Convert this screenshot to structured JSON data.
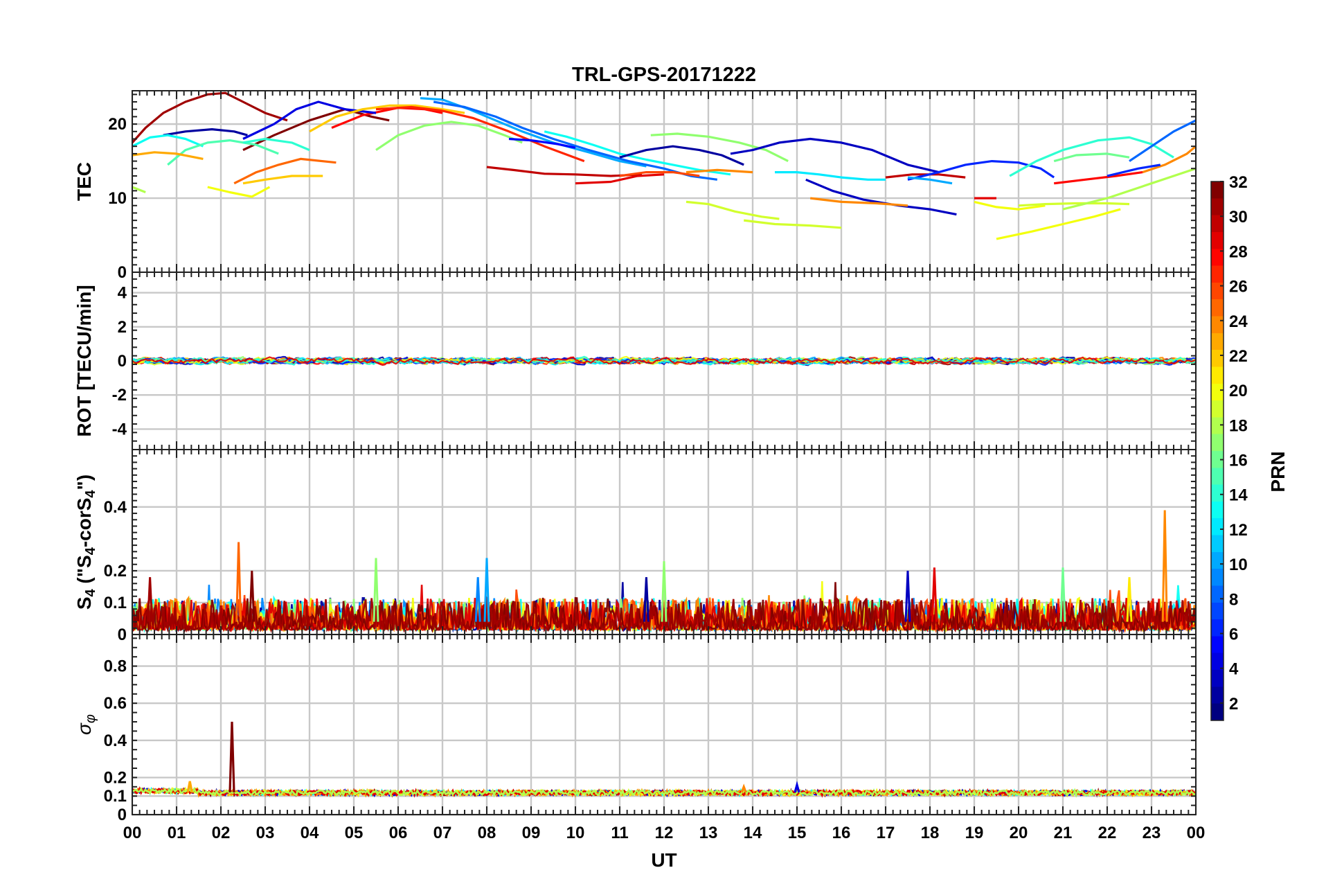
{
  "chart_data": {
    "type": "line",
    "title": "TRL-GPS-20171222",
    "xlabel": "UT",
    "x_tick_labels": [
      "00",
      "01",
      "02",
      "03",
      "04",
      "05",
      "06",
      "07",
      "08",
      "09",
      "10",
      "11",
      "12",
      "13",
      "14",
      "15",
      "16",
      "17",
      "18",
      "19",
      "20",
      "21",
      "22",
      "23",
      "00"
    ],
    "xlim": [
      0,
      24
    ],
    "grid": true,
    "panels": [
      {
        "id": "tec",
        "ylabel": "TEC",
        "ylim": [
          0,
          24.5
        ],
        "y_ticks": [
          0,
          10,
          20
        ],
        "y_tick_labels": [
          "0",
          "10",
          "20"
        ],
        "series": [
          {
            "prn": 31,
            "x": [
              0.0,
              0.3,
              0.7,
              1.2,
              1.7,
              2.1,
              2.5,
              3.0,
              3.5
            ],
            "y": [
              17.5,
              19.5,
              21.5,
              23.0,
              24.0,
              24.2,
              23.0,
              21.5,
              20.5
            ]
          },
          {
            "prn": 32,
            "x": [
              2.5,
              3.2,
              4.0,
              4.8,
              5.4,
              5.8
            ],
            "y": [
              16.5,
              18.5,
              20.5,
              22.0,
              21.0,
              20.5
            ]
          },
          {
            "prn": 28,
            "x": [
              4.5,
              5.2,
              6.0,
              6.6,
              7.0
            ],
            "y": [
              19.5,
              21.2,
              22.2,
              22.0,
              21.5
            ]
          },
          {
            "prn": 2,
            "x": [
              0.7,
              1.2,
              1.8,
              2.3,
              2.6
            ],
            "y": [
              18.5,
              19.0,
              19.3,
              19.0,
              18.5
            ]
          },
          {
            "prn": 4,
            "x": [
              2.5,
              3.2,
              3.7,
              4.2,
              4.8,
              5.5
            ],
            "y": [
              18.0,
              20.0,
              22.0,
              23.0,
              22.0,
              21.5
            ]
          },
          {
            "prn": 13,
            "x": [
              0.0,
              0.4,
              0.8,
              1.2,
              1.6
            ],
            "y": [
              17.0,
              18.2,
              18.5,
              18.0,
              17.0
            ]
          },
          {
            "prn": 15,
            "x": [
              0.8,
              1.2,
              1.7,
              2.2,
              2.8,
              3.3
            ],
            "y": [
              14.5,
              16.5,
              17.5,
              17.8,
              17.2,
              16.0
            ]
          },
          {
            "prn": 14,
            "x": [
              2.5,
              3.0,
              3.6,
              4.0
            ],
            "y": [
              17.5,
              18.0,
              17.5,
              16.5
            ]
          },
          {
            "prn": 23,
            "x": [
              0.0,
              0.5,
              1.0,
              1.6
            ],
            "y": [
              15.8,
              16.2,
              16.0,
              15.3
            ]
          },
          {
            "prn": 25,
            "x": [
              2.3,
              2.8,
              3.3,
              3.8,
              4.6
            ],
            "y": [
              12.0,
              13.5,
              14.5,
              15.3,
              14.8
            ]
          },
          {
            "prn": 22,
            "x": [
              2.5,
              3.0,
              3.6,
              4.3
            ],
            "y": [
              12.0,
              12.5,
              13.0,
              13.0
            ]
          },
          {
            "prn": 20,
            "x": [
              1.7,
              2.2,
              2.7,
              3.1
            ],
            "y": [
              11.5,
              10.8,
              10.2,
              11.5
            ]
          },
          {
            "prn": 18,
            "x": [
              0.0,
              0.3
            ],
            "y": [
              11.5,
              10.8
            ]
          },
          {
            "prn": 22,
            "x": [
              4.0,
              4.6,
              5.2,
              5.8,
              6.4,
              7.0,
              7.5
            ],
            "y": [
              19.0,
              21.0,
              22.0,
              22.5,
              22.5,
              22.0,
              21.5
            ]
          },
          {
            "prn": 10,
            "x": [
              6.5,
              7.0,
              7.6,
              8.2,
              8.8,
              9.5,
              10.3,
              11.0,
              11.6
            ],
            "y": [
              23.5,
              23.3,
              22.0,
              20.5,
              19.0,
              17.5,
              16.2,
              15.0,
              14.3
            ]
          },
          {
            "prn": 27,
            "x": [
              5.5,
              6.3,
              7.0,
              7.7,
              8.5,
              9.3,
              10.2
            ],
            "y": [
              22.0,
              22.3,
              21.8,
              20.8,
              19.0,
              17.0,
              15.0
            ]
          },
          {
            "prn": 8,
            "x": [
              6.8,
              7.5,
              8.2,
              8.8,
              9.5,
              10.3,
              11.2,
              12.0,
              12.6,
              13.2
            ],
            "y": [
              23.0,
              22.3,
              21.0,
              19.5,
              18.0,
              16.5,
              15.0,
              14.0,
              13.0,
              12.5
            ]
          },
          {
            "prn": 17,
            "x": [
              5.5,
              6.0,
              6.6,
              7.2,
              7.8,
              8.4,
              8.8
            ],
            "y": [
              16.5,
              18.5,
              19.8,
              20.3,
              19.8,
              18.5,
              17.5
            ]
          },
          {
            "prn": 5,
            "x": [
              8.5,
              9.0,
              9.6,
              10.0
            ],
            "y": [
              18.0,
              17.8,
              17.3,
              16.8
            ]
          },
          {
            "prn": 13,
            "x": [
              9.3,
              9.8,
              10.4,
              11.0,
              11.6,
              12.2,
              12.8,
              13.5
            ],
            "y": [
              19.0,
              18.3,
              17.2,
              16.0,
              15.2,
              14.5,
              13.8,
              13.2
            ]
          },
          {
            "prn": 30,
            "x": [
              8.0,
              8.6,
              9.3,
              10.0,
              10.8,
              11.5
            ],
            "y": [
              14.2,
              13.8,
              13.3,
              13.2,
              13.0,
              13.2
            ]
          },
          {
            "prn": 29,
            "x": [
              10.0,
              10.8,
              11.4,
              12.0
            ],
            "y": [
              12.0,
              12.2,
              13.0,
              13.2
            ]
          },
          {
            "prn": 26,
            "x": [
              11.0,
              11.6,
              12.2,
              12.8
            ],
            "y": [
              13.0,
              13.5,
              13.5,
              13.0
            ]
          },
          {
            "prn": 2,
            "x": [
              11.0,
              11.6,
              12.2,
              12.8,
              13.3,
              13.8
            ],
            "y": [
              15.5,
              16.5,
              17.0,
              16.5,
              15.8,
              14.5
            ]
          },
          {
            "prn": 17,
            "x": [
              11.7,
              12.3,
              13.0,
              13.7,
              14.3,
              14.8
            ],
            "y": [
              18.5,
              18.7,
              18.3,
              17.5,
              16.5,
              15.0
            ]
          },
          {
            "prn": 24,
            "x": [
              12.5,
              13.2,
              14.0
            ],
            "y": [
              13.5,
              13.8,
              13.5
            ]
          },
          {
            "prn": 19,
            "x": [
              12.5,
              13.0,
              13.6,
              14.2,
              14.6
            ],
            "y": [
              9.5,
              9.2,
              8.2,
              7.5,
              7.2
            ]
          },
          {
            "prn": 19,
            "x": [
              13.8,
              14.5,
              15.3,
              16.0
            ],
            "y": [
              7.0,
              6.5,
              6.3,
              6.0
            ]
          },
          {
            "prn": 3,
            "x": [
              13.5,
              14.0,
              14.6,
              15.3,
              16.0,
              16.7,
              17.5,
              18.2
            ],
            "y": [
              16.0,
              16.5,
              17.5,
              18.0,
              17.5,
              16.5,
              14.5,
              13.5
            ]
          },
          {
            "prn": 12,
            "x": [
              14.5,
              15.0,
              15.5,
              16.0,
              16.6,
              17.0
            ],
            "y": [
              13.5,
              13.5,
              13.2,
              12.8,
              12.5,
              12.5
            ]
          },
          {
            "prn": 3,
            "x": [
              15.2,
              15.8,
              16.5,
              17.3,
              18.0,
              18.6
            ],
            "y": [
              12.5,
              11.0,
              9.8,
              9.0,
              8.5,
              7.8
            ]
          },
          {
            "prn": 24,
            "x": [
              15.3,
              16.0,
              16.8,
              17.5
            ],
            "y": [
              10.0,
              9.5,
              9.3,
              9.0
            ]
          },
          {
            "prn": 30,
            "x": [
              17.0,
              17.6,
              18.2,
              18.8
            ],
            "y": [
              12.8,
              13.2,
              13.2,
              12.8
            ]
          },
          {
            "prn": 6,
            "x": [
              17.5,
              18.2,
              18.8,
              19.4,
              20.0,
              20.5,
              20.8
            ],
            "y": [
              12.5,
              13.5,
              14.5,
              15.0,
              14.8,
              14.0,
              12.8
            ]
          },
          {
            "prn": 10,
            "x": [
              17.5,
              18.0,
              18.5
            ],
            "y": [
              12.8,
              12.5,
              12.0
            ]
          },
          {
            "prn": 29,
            "x": [
              19.0,
              19.5
            ],
            "y": [
              10.0,
              10.0
            ]
          },
          {
            "prn": 20,
            "x": [
              19.0,
              19.5,
              20.0,
              20.6
            ],
            "y": [
              9.5,
              8.8,
              8.5,
              9.0
            ]
          },
          {
            "prn": 20,
            "x": [
              19.5,
              20.3,
              21.0,
              21.7,
              22.3
            ],
            "y": [
              4.5,
              5.5,
              6.5,
              7.5,
              8.5
            ]
          },
          {
            "prn": 19,
            "x": [
              20.0,
              20.6,
              21.3,
              22.0,
              22.5
            ],
            "y": [
              9.0,
              9.2,
              9.3,
              9.3,
              9.2
            ]
          },
          {
            "prn": 14,
            "x": [
              19.8,
              20.4,
              21.0,
              21.8,
              22.5,
              23.0,
              23.5
            ],
            "y": [
              13.0,
              15.0,
              16.5,
              17.8,
              18.2,
              17.3,
              15.5
            ]
          },
          {
            "prn": 16,
            "x": [
              20.8,
              21.3,
              22.0,
              22.5
            ],
            "y": [
              15.0,
              15.8,
              16.0,
              15.5
            ]
          },
          {
            "prn": 28,
            "x": [
              20.8,
              21.5,
              22.2,
              22.8
            ],
            "y": [
              12.0,
              12.5,
              13.0,
              13.5
            ]
          },
          {
            "prn": 8,
            "x": [
              22.5,
              23.0,
              23.5,
              24.0
            ],
            "y": [
              15.0,
              17.0,
              19.0,
              20.5
            ]
          },
          {
            "prn": 18,
            "x": [
              21.0,
              22.0,
              23.0,
              24.0
            ],
            "y": [
              8.5,
              10.0,
              12.0,
              14.0
            ]
          },
          {
            "prn": 24,
            "x": [
              22.8,
              23.3,
              23.8,
              24.0
            ],
            "y": [
              13.5,
              14.5,
              16.0,
              17.0
            ]
          },
          {
            "prn": 6,
            "x": [
              22.0,
              22.7,
              23.2
            ],
            "y": [
              13.0,
              14.0,
              14.5
            ]
          }
        ]
      },
      {
        "id": "rot",
        "ylabel": "ROT [TECU/min]",
        "ylim": [
          -5.2,
          5.2
        ],
        "y_ticks": [
          -4,
          -2,
          0,
          2,
          4
        ],
        "y_tick_labels": [
          "-4",
          "-2",
          "0",
          "2",
          "4"
        ],
        "noise_band": {
          "center": 0,
          "amplitude": 0.3,
          "note": "all PRN traces stay within about ±0.4 TECU/min"
        }
      },
      {
        "id": "s4",
        "ylabel": "S_4 (\"S_4-corS_4\")",
        "ylabel_parts": {
          "base": "S",
          "sub": "4",
          "open": " (\"S",
          "sub2": "4",
          "mid": "-corS",
          "sub3": "4",
          "close": "\")"
        },
        "ylim": [
          0,
          0.58
        ],
        "y_ticks": [
          0,
          0.1,
          0.2,
          0.4
        ],
        "y_tick_labels": [
          "0",
          "0.1",
          "0.2",
          "0.4"
        ],
        "baseline": {
          "typical": [
            0.01,
            0.08
          ]
        },
        "spikes": [
          {
            "x": 0.4,
            "y": 0.18,
            "prn": 31
          },
          {
            "x": 2.4,
            "y": 0.29,
            "prn": 25
          },
          {
            "x": 2.7,
            "y": 0.2,
            "prn": 32
          },
          {
            "x": 5.5,
            "y": 0.24,
            "prn": 17
          },
          {
            "x": 8.0,
            "y": 0.24,
            "prn": 10
          },
          {
            "x": 7.8,
            "y": 0.18,
            "prn": 9
          },
          {
            "x": 11.6,
            "y": 0.18,
            "prn": 2
          },
          {
            "x": 12.0,
            "y": 0.23,
            "prn": 17
          },
          {
            "x": 17.5,
            "y": 0.2,
            "prn": 3
          },
          {
            "x": 18.1,
            "y": 0.21,
            "prn": 29
          },
          {
            "x": 21.0,
            "y": 0.21,
            "prn": 16
          },
          {
            "x": 23.3,
            "y": 0.39,
            "prn": 24
          },
          {
            "x": 22.5,
            "y": 0.18,
            "prn": 21
          }
        ]
      },
      {
        "id": "sigma_phi",
        "ylabel": "σ_φ",
        "ylabel_parts": {
          "base": "σ",
          "sub": "φ"
        },
        "ylim": [
          0,
          0.97
        ],
        "y_ticks": [
          0,
          0.1,
          0.2,
          0.4,
          0.6,
          0.8
        ],
        "y_tick_labels": [
          "0",
          "0.1",
          "0.2",
          "0.4",
          "0.6",
          "0.8"
        ],
        "baseline": {
          "typical": [
            0.1,
            0.13
          ]
        },
        "spikes": [
          {
            "x": 2.25,
            "y": 0.5,
            "prn": 32
          },
          {
            "x": 1.3,
            "y": 0.18,
            "prn": 23
          },
          {
            "x": 15.0,
            "y": 0.16,
            "prn": 4
          },
          {
            "x": 13.8,
            "y": 0.15,
            "prn": 24
          }
        ]
      }
    ],
    "colorbar": {
      "label": "PRN",
      "colormap": "jet",
      "range": [
        1,
        32
      ],
      "ticks": [
        2,
        4,
        6,
        8,
        10,
        12,
        14,
        16,
        18,
        20,
        22,
        24,
        26,
        28,
        30,
        32
      ],
      "tick_labels": [
        "2",
        "4",
        "6",
        "8",
        "10",
        "12",
        "14",
        "16",
        "18",
        "20",
        "22",
        "24",
        "26",
        "28",
        "30",
        "32"
      ]
    }
  }
}
